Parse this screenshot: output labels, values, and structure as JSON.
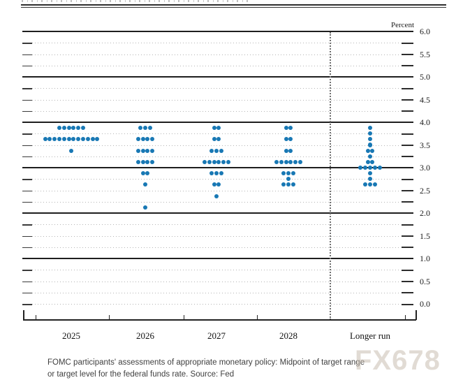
{
  "chart_data": {
    "type": "scatter",
    "description": "FOMC dot plot",
    "unit_label": "Percent",
    "ylim": [
      0.0,
      6.0
    ],
    "y_tick_labels": [
      "6.0",
      "5.5",
      "5.0",
      "4.5",
      "4.0",
      "3.5",
      "3.0",
      "2.5",
      "2.0",
      "1.5",
      "1.0",
      "0.5",
      "0.0"
    ],
    "grid": {
      "major_step": 1.0,
      "minor_step": 0.25,
      "major_lines_solid": [
        1,
        2,
        3,
        4,
        5,
        6
      ]
    },
    "categories": [
      "2025",
      "2026",
      "2027",
      "2028",
      "Longer run"
    ],
    "separator_before": "Longer run",
    "dot_color": "#1878b4",
    "series": [
      {
        "category": "2025",
        "dots": [
          {
            "rate": 3.875,
            "count": 6
          },
          {
            "rate": 3.625,
            "count": 12
          },
          {
            "rate": 3.375,
            "count": 1
          }
        ]
      },
      {
        "category": "2026",
        "dots": [
          {
            "rate": 3.875,
            "count": 3
          },
          {
            "rate": 3.625,
            "count": 4
          },
          {
            "rate": 3.375,
            "count": 4
          },
          {
            "rate": 3.125,
            "count": 4
          },
          {
            "rate": 2.875,
            "count": 2
          },
          {
            "rate": 2.625,
            "count": 1
          },
          {
            "rate": 2.125,
            "count": 1
          }
        ]
      },
      {
        "category": "2027",
        "dots": [
          {
            "rate": 3.875,
            "count": 2
          },
          {
            "rate": 3.625,
            "count": 2
          },
          {
            "rate": 3.375,
            "count": 3
          },
          {
            "rate": 3.125,
            "count": 6
          },
          {
            "rate": 2.875,
            "count": 3
          },
          {
            "rate": 2.625,
            "count": 2
          },
          {
            "rate": 2.375,
            "count": 1
          }
        ]
      },
      {
        "category": "2028",
        "dots": [
          {
            "rate": 3.875,
            "count": 2
          },
          {
            "rate": 3.625,
            "count": 2
          },
          {
            "rate": 3.375,
            "count": 2
          },
          {
            "rate": 3.125,
            "count": 6
          },
          {
            "rate": 2.875,
            "count": 3
          },
          {
            "rate": 2.75,
            "count": 1
          },
          {
            "rate": 2.625,
            "count": 3
          }
        ]
      },
      {
        "category": "Longer run",
        "dots": [
          {
            "rate": 3.875,
            "count": 1
          },
          {
            "rate": 3.75,
            "count": 1
          },
          {
            "rate": 3.625,
            "count": 1
          },
          {
            "rate": 3.5,
            "count": 1
          },
          {
            "rate": 3.375,
            "count": 2
          },
          {
            "rate": 3.25,
            "count": 1
          },
          {
            "rate": 3.125,
            "count": 2
          },
          {
            "rate": 3.0,
            "count": 5
          },
          {
            "rate": 2.875,
            "count": 1
          },
          {
            "rate": 2.75,
            "count": 1
          },
          {
            "rate": 2.625,
            "count": 3
          }
        ]
      }
    ]
  },
  "caption": {
    "line1": "FOMC participants' assessments of appropriate monetary policy: Midpoint of target range",
    "line2": "or target level for the federal funds rate. Source: Fed"
  },
  "watermark": "FX678"
}
